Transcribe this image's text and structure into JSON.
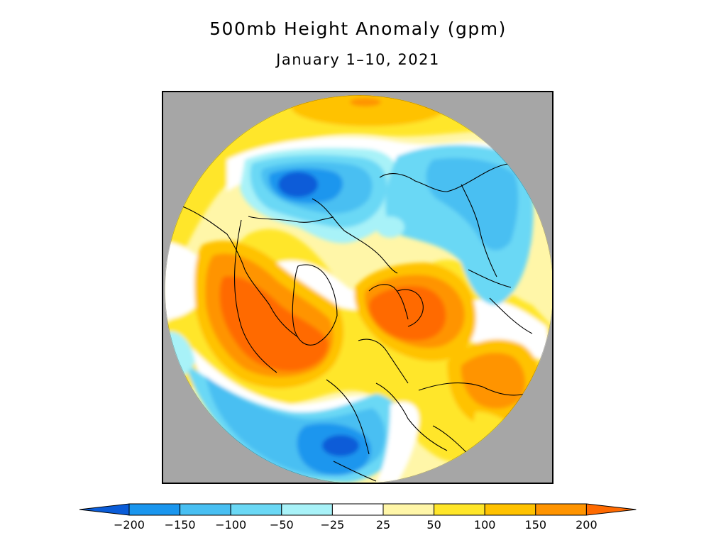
{
  "title": "500mb Height Anomaly (gpm)",
  "subtitle": "January 1–10, 2021",
  "colorbar": {
    "labels": [
      "−200",
      "−150",
      "−100",
      "−50",
      "−25",
      "25",
      "50",
      "100",
      "150",
      "200"
    ],
    "colors": [
      "#0a5cd8",
      "#1a96ee",
      "#48bff2",
      "#6ad8f5",
      "#a8f2f8",
      "#ffffff",
      "#fff6a8",
      "#ffe629",
      "#ffc200",
      "#ff9400",
      "#ff6a00"
    ]
  },
  "map": {
    "projection": "north polar stereographic",
    "background": "#a6a6a6"
  }
}
